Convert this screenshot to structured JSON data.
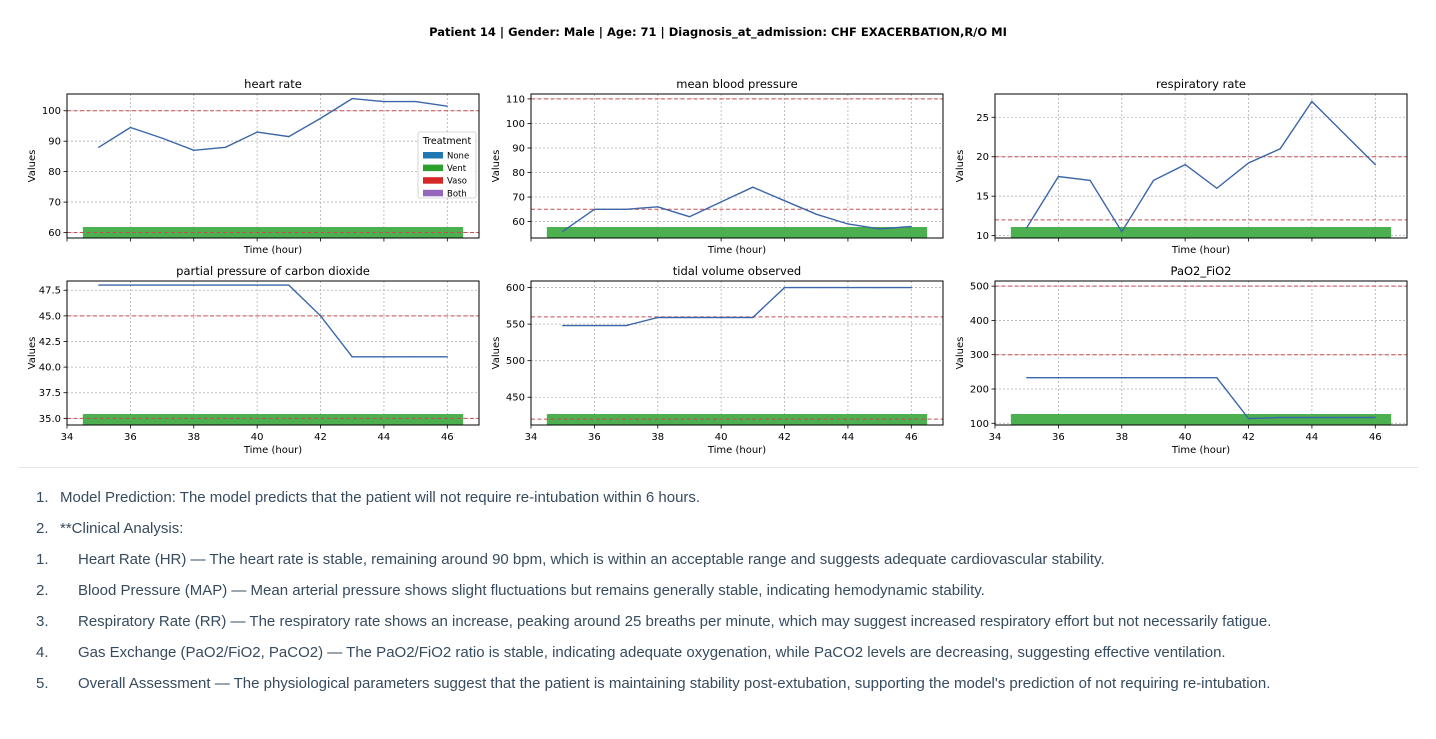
{
  "header": {
    "title": "Patient 14 | Gender: Male | Age: 71 | Diagnosis_at_admission: CHF EXACERBATION,R/O MI"
  },
  "legend": {
    "title": "Treatment",
    "items": [
      {
        "label": "None",
        "color": "#1f77b4"
      },
      {
        "label": "Vent",
        "color": "#2ca02c"
      },
      {
        "label": "Vaso",
        "color": "#d62728"
      },
      {
        "label": "Both",
        "color": "#9467bd"
      }
    ]
  },
  "colors": {
    "line": "#3b66a8",
    "threshold": "#c44e52",
    "treatment_bar": "#4caf50",
    "grid": "#b0b0b0"
  },
  "chart_data": [
    {
      "type": "line",
      "title": "heart rate",
      "xlabel": "Time (hour)",
      "ylabel": "Values",
      "x": [
        35,
        36,
        37,
        38,
        39,
        40,
        41,
        42,
        43,
        44,
        45,
        46
      ],
      "y": [
        88,
        94.5,
        91,
        87,
        88,
        93,
        91.5,
        97.5,
        104,
        103,
        103,
        101.5
      ],
      "xlim": [
        34,
        47
      ],
      "ylim": [
        58.2,
        105.5
      ],
      "yticks": [
        60,
        70,
        80,
        90,
        100
      ],
      "xticks": [
        34,
        36,
        38,
        40,
        42,
        44,
        46
      ],
      "show_xticklabels": false,
      "thresholds": [
        60,
        100
      ],
      "treatment": {
        "label": "Vent",
        "start": 34.5,
        "end": 46.5
      },
      "legend": "center-right"
    },
    {
      "type": "line",
      "title": "mean blood pressure",
      "xlabel": "Time (hour)",
      "ylabel": "Values",
      "x": [
        35,
        36,
        37,
        38,
        39,
        40,
        41,
        42,
        43,
        44,
        45,
        46
      ],
      "y": [
        56,
        65,
        65,
        66,
        62,
        68,
        74,
        68.5,
        63,
        59,
        57,
        58
      ],
      "xlim": [
        34,
        47
      ],
      "ylim": [
        53.3,
        112
      ],
      "yticks": [
        60,
        70,
        80,
        90,
        100,
        110
      ],
      "xticks": [
        34,
        36,
        38,
        40,
        42,
        44,
        46
      ],
      "show_xticklabels": false,
      "thresholds": [
        65,
        110
      ],
      "treatment": {
        "label": "Vent",
        "start": 34.5,
        "end": 46.5
      }
    },
    {
      "type": "line",
      "title": "respiratory rate",
      "xlabel": "Time (hour)",
      "ylabel": "Values",
      "x": [
        35,
        36,
        37,
        38,
        39,
        40,
        41,
        42,
        43,
        44,
        45,
        46
      ],
      "y": [
        11,
        17.5,
        17,
        10.5,
        17,
        19,
        16,
        19.2,
        21,
        27,
        23,
        19
      ],
      "xlim": [
        34,
        47
      ],
      "ylim": [
        9.7,
        27.95
      ],
      "yticks": [
        10,
        15,
        20,
        25
      ],
      "xticks": [
        34,
        36,
        38,
        40,
        42,
        44,
        46
      ],
      "show_xticklabels": false,
      "thresholds": [
        12,
        20
      ],
      "treatment": {
        "label": "Vent",
        "start": 34.5,
        "end": 46.5
      }
    },
    {
      "type": "line",
      "title": "partial pressure of carbon dioxide",
      "xlabel": "Time (hour)",
      "ylabel": "Values",
      "x": [
        35,
        36,
        37,
        38,
        39,
        40,
        41,
        42,
        43,
        44,
        45,
        46
      ],
      "y": [
        48,
        48,
        48,
        48,
        48,
        48,
        48,
        45,
        41,
        41,
        41,
        41
      ],
      "xlim": [
        34,
        47
      ],
      "ylim": [
        34.35,
        48.4
      ],
      "yticks": [
        35,
        37.5,
        40,
        42.5,
        45,
        47.5
      ],
      "ytick_labels": [
        "35.0",
        "37.5",
        "40.0",
        "42.5",
        "45.0",
        "47.5"
      ],
      "xticks": [
        34,
        36,
        38,
        40,
        42,
        44,
        46
      ],
      "show_xticklabels": true,
      "thresholds": [
        35,
        45
      ],
      "treatment": {
        "label": "Vent",
        "start": 34.5,
        "end": 46.5
      }
    },
    {
      "type": "line",
      "title": "tidal volume observed",
      "xlabel": "Time (hour)",
      "ylabel": "Values",
      "x": [
        35,
        36,
        37,
        38,
        39,
        40,
        41,
        42,
        43,
        44,
        45,
        46
      ],
      "y": [
        548,
        548,
        548,
        559,
        559,
        559,
        559,
        600,
        600,
        600,
        600,
        600
      ],
      "xlim": [
        34,
        47
      ],
      "ylim": [
        412,
        609
      ],
      "yticks": [
        450,
        500,
        550,
        600
      ],
      "xticks": [
        34,
        36,
        38,
        40,
        42,
        44,
        46
      ],
      "show_xticklabels": true,
      "thresholds": [
        420,
        560
      ],
      "treatment": {
        "label": "Vent",
        "start": 34.5,
        "end": 46.5
      }
    },
    {
      "type": "line",
      "title": "PaO2_FiO2",
      "xlabel": "Time (hour)",
      "ylabel": "Values",
      "x": [
        35,
        36,
        37,
        38,
        39,
        40,
        41,
        42,
        43,
        44,
        45,
        46
      ],
      "y": [
        233,
        233,
        233,
        233,
        233,
        233,
        233,
        114,
        117,
        117,
        117,
        117
      ],
      "xlim": [
        34,
        47
      ],
      "ylim": [
        95,
        515
      ],
      "yticks": [
        100,
        200,
        300,
        400,
        500
      ],
      "xticks": [
        34,
        36,
        38,
        40,
        42,
        44,
        46
      ],
      "show_xticklabels": true,
      "thresholds": [
        300,
        500
      ],
      "treatment": {
        "label": "Vent",
        "start": 34.5,
        "end": 46.5
      }
    }
  ],
  "analysis": {
    "items": [
      {
        "num": "1.",
        "text": "Model Prediction: The model predicts that the patient will not require re-intubation within 6 hours.",
        "sub": false
      },
      {
        "num": "2.",
        "text": "**Clinical Analysis:",
        "sub": false
      },
      {
        "num": "1.",
        "text": "Heart Rate (HR) — The heart rate is stable, remaining around 90 bpm, which is within an acceptable range and suggests adequate cardiovascular stability.",
        "sub": true
      },
      {
        "num": "2.",
        "text": "Blood Pressure (MAP) — Mean arterial pressure shows slight fluctuations but remains generally stable, indicating hemodynamic stability.",
        "sub": true
      },
      {
        "num": "3.",
        "text": "Respiratory Rate (RR) — The respiratory rate shows an increase, peaking around 25 breaths per minute, which may suggest increased respiratory effort but not necessarily fatigue.",
        "sub": true
      },
      {
        "num": "4.",
        "text": "Gas Exchange (PaO2/FiO2, PaCO2) — The PaO2/FiO2 ratio is stable, indicating adequate oxygenation, while PaCO2 levels are decreasing, suggesting effective ventilation.",
        "sub": true
      },
      {
        "num": "5.",
        "text": "Overall Assessment — The physiological parameters suggest that the patient is maintaining stability post-extubation, supporting the model's prediction of not requiring re-intubation.",
        "sub": true
      }
    ]
  }
}
